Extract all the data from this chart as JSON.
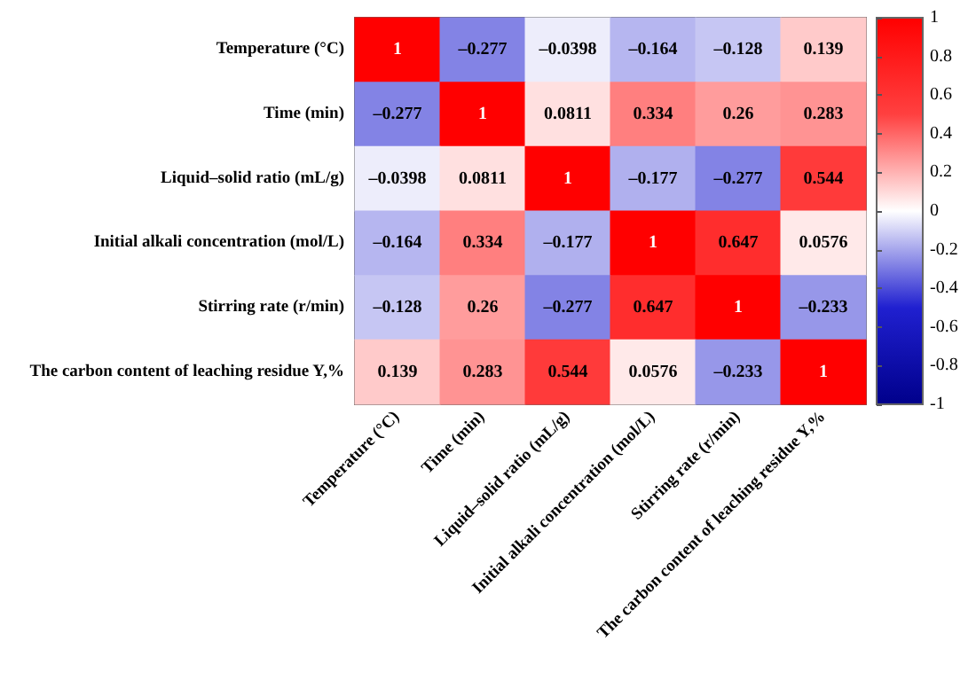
{
  "chart_data": {
    "type": "heatmap",
    "categories": [
      "Temperature (°C)",
      "Time (min)",
      "Liquid–solid ratio (mL/g)",
      "Initial alkali concentration (mol/L)",
      "Stirring rate (r/min)",
      "The carbon content of leaching residue Y,%"
    ],
    "y_categories": [
      "Temperature (°C)",
      "Time (min)",
      "Liquid–solid ratio (mL/g)",
      "Initial alkali concentration (mol/L)",
      "Stirring rate (r/min)",
      "The carbon content of leaching residue Y,%"
    ],
    "cells": [
      [
        1,
        -0.277,
        -0.0398,
        -0.164,
        -0.128,
        0.139
      ],
      [
        -0.277,
        1,
        0.0811,
        0.334,
        0.26,
        0.283
      ],
      [
        -0.0398,
        0.0811,
        1,
        -0.177,
        -0.277,
        0.544
      ],
      [
        -0.164,
        0.334,
        -0.177,
        1,
        0.647,
        0.0576
      ],
      [
        -0.128,
        0.26,
        -0.277,
        0.647,
        1,
        -0.233
      ],
      [
        0.139,
        0.283,
        0.544,
        0.0576,
        -0.233,
        1
      ]
    ],
    "cell_labels": [
      [
        "1",
        "–0.277",
        "–0.0398",
        "–0.164",
        "–0.128",
        "0.139"
      ],
      [
        "–0.277",
        "1",
        "0.0811",
        "0.334",
        "0.26",
        "0.283"
      ],
      [
        "–0.0398",
        "0.0811",
        "1",
        "–0.177",
        "–0.277",
        "0.544"
      ],
      [
        "–0.164",
        "0.334",
        "–0.177",
        "1",
        "0.647",
        "0.0576"
      ],
      [
        "–0.128",
        "0.26",
        "–0.277",
        "0.647",
        "1",
        "–0.233"
      ],
      [
        "0.139",
        "0.283",
        "0.544",
        "0.0576",
        "–0.233",
        "1"
      ]
    ],
    "clim": [
      -1,
      1
    ],
    "cticks": [
      -1,
      -0.8,
      -0.6,
      -0.4,
      -0.2,
      0,
      0.2,
      0.4,
      0.6,
      0.8,
      1
    ]
  }
}
